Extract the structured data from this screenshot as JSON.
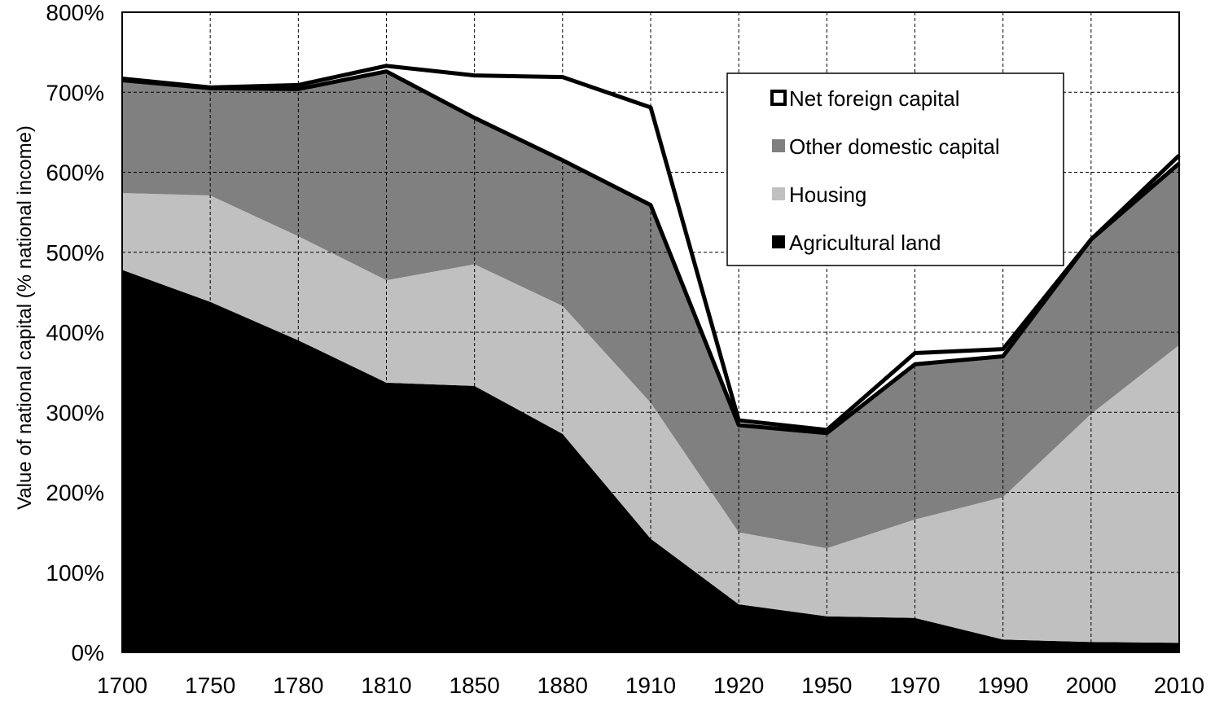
{
  "chart_data": {
    "type": "area",
    "stacked": true,
    "title": "",
    "xlabel": "",
    "ylabel": "Value of national capital (% national income)",
    "x_categories": [
      "1700",
      "1750",
      "1780",
      "1810",
      "1850",
      "1880",
      "1910",
      "1920",
      "1950",
      "1970",
      "1990",
      "2000",
      "2010"
    ],
    "y_ticks": [
      "0%",
      "100%",
      "200%",
      "300%",
      "400%",
      "500%",
      "600%",
      "700%",
      "800%"
    ],
    "ylim": [
      0,
      800
    ],
    "grid": true,
    "legend_position": "top-right",
    "series": [
      {
        "name": "Agricultural land",
        "color": "#000000",
        "values": [
          478,
          438,
          390,
          337,
          333,
          273,
          142,
          60,
          45,
          43,
          16,
          13,
          12
        ]
      },
      {
        "name": "Housing",
        "color": "#c0c0c0",
        "values": [
          96,
          133,
          130,
          128,
          152,
          160,
          170,
          90,
          85,
          123,
          178,
          285,
          372
        ]
      },
      {
        "name": "Other domestic capital",
        "color": "#808080",
        "values": [
          141,
          134,
          184,
          261,
          183,
          182,
          247,
          134,
          144,
          194,
          176,
          218,
          227
        ]
      },
      {
        "name": "Net foreign capital",
        "color": "#ffffff",
        "values": [
          2,
          1,
          5,
          7,
          53,
          104,
          122,
          6,
          4,
          14,
          9,
          0,
          10
        ]
      }
    ],
    "domestic_total": [
      715,
      705,
      704,
      726,
      668,
      615,
      559,
      284,
      274,
      360,
      370,
      516,
      611
    ]
  }
}
